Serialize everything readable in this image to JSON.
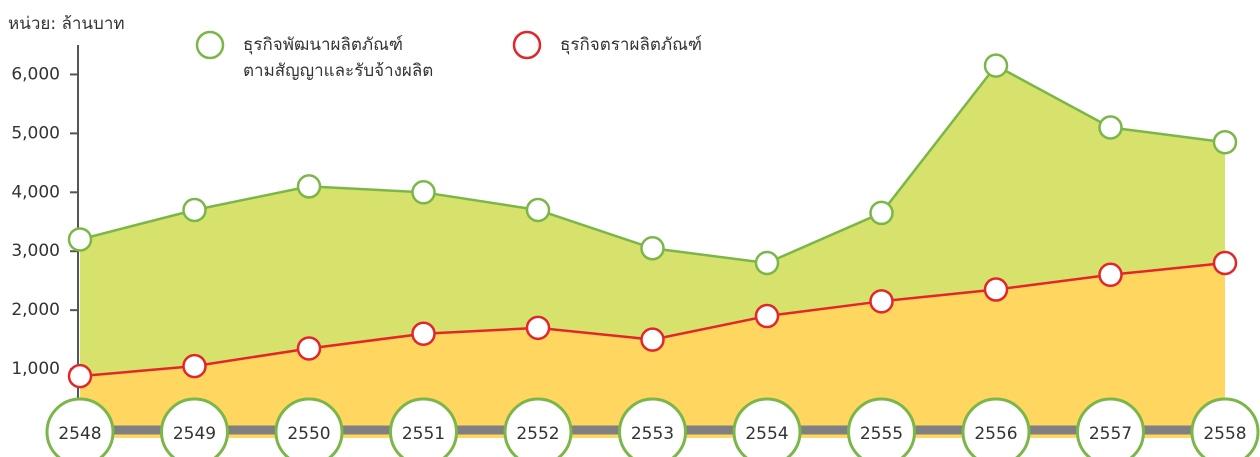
{
  "chart_data": {
    "type": "area",
    "unit_label": "หน่วย: ล้านบาท",
    "categories": [
      "2548",
      "2549",
      "2550",
      "2551",
      "2552",
      "2553",
      "2554",
      "2555",
      "2556",
      "2557",
      "2558"
    ],
    "series": [
      {
        "name": "ธุรกิจพัฒนาผลิตภัณฑ์\nตามสัญญาและรับจ้างผลิต",
        "color": "#7ab648",
        "fill": "#d6e26c",
        "values": [
          3200,
          3700,
          4100,
          4000,
          3700,
          3050,
          2800,
          3650,
          6150,
          5100,
          4850
        ]
      },
      {
        "name": "ธุรกิจตราผลิตภัณฑ์",
        "color": "#e2262a",
        "fill": "#ffd660",
        "values": [
          880,
          1050,
          1350,
          1600,
          1700,
          1500,
          1900,
          2150,
          2350,
          2600,
          2800
        ]
      }
    ],
    "ylim": [
      0,
      6500
    ],
    "yticks": [
      {
        "value": 1000,
        "label": "1,000"
      },
      {
        "value": 2000,
        "label": "2,000"
      },
      {
        "value": 3000,
        "label": "3,000"
      },
      {
        "value": 4000,
        "label": "4,000"
      },
      {
        "value": 5000,
        "label": "5,000"
      },
      {
        "value": 6000,
        "label": "6,000"
      }
    ]
  }
}
